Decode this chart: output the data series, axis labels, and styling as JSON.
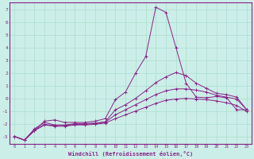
{
  "background_color": "#cceee8",
  "grid_color": "#aaddcc",
  "line_color": "#882288",
  "xlabel": "Windchill (Refroidissement éolien,°C)",
  "yticks": [
    -3,
    -2,
    -1,
    0,
    1,
    2,
    3,
    4,
    5,
    6,
    7
  ],
  "ylabel_ticks": [
    "-3",
    "-2",
    "-1",
    "0",
    "1",
    "2",
    "3",
    "4",
    "5",
    "6",
    "7"
  ],
  "ylim": [
    -3.6,
    7.6
  ],
  "xlim": [
    -0.5,
    23.5
  ],
  "xticks": [
    0,
    1,
    2,
    3,
    4,
    5,
    6,
    7,
    8,
    9,
    10,
    11,
    12,
    13,
    14,
    15,
    16,
    17,
    18,
    19,
    20,
    21,
    22,
    23
  ],
  "series": [
    {
      "x": [
        0,
        1,
        2,
        3,
        4,
        5,
        6,
        7,
        8,
        9,
        10,
        11,
        12,
        13,
        14,
        15,
        16,
        17,
        18,
        19,
        20,
        21,
        22,
        23
      ],
      "y": [
        -3.0,
        -3.3,
        -2.5,
        -1.8,
        -1.7,
        -1.9,
        -1.9,
        -1.9,
        -1.8,
        -1.6,
        -0.1,
        0.5,
        2.0,
        3.3,
        7.2,
        6.8,
        4.0,
        1.2,
        0.1,
        0.05,
        0.15,
        0.05,
        -0.9,
        -0.9
      ]
    },
    {
      "x": [
        0,
        1,
        2,
        3,
        4,
        5,
        6,
        7,
        8,
        9,
        10,
        11,
        12,
        13,
        14,
        15,
        16,
        17,
        18,
        19,
        20,
        21,
        22,
        23
      ],
      "y": [
        -3.0,
        -3.3,
        -2.4,
        -1.9,
        -2.1,
        -2.1,
        -2.0,
        -2.0,
        -1.95,
        -1.85,
        -0.9,
        -0.5,
        0.0,
        0.6,
        1.25,
        1.7,
        2.05,
        1.8,
        1.2,
        0.8,
        0.4,
        0.3,
        0.1,
        -0.9
      ]
    },
    {
      "x": [
        0,
        1,
        2,
        3,
        4,
        5,
        6,
        7,
        8,
        9,
        10,
        11,
        12,
        13,
        14,
        15,
        16,
        17,
        18,
        19,
        20,
        21,
        22,
        23
      ],
      "y": [
        -3.0,
        -3.3,
        -2.5,
        -2.05,
        -2.15,
        -2.15,
        -2.05,
        -2.05,
        -1.98,
        -1.88,
        -1.3,
        -0.9,
        -0.5,
        -0.1,
        0.3,
        0.6,
        0.75,
        0.75,
        0.65,
        0.5,
        0.25,
        0.1,
        -0.05,
        -0.9
      ]
    },
    {
      "x": [
        0,
        1,
        2,
        3,
        4,
        5,
        6,
        7,
        8,
        9,
        10,
        11,
        12,
        13,
        14,
        15,
        16,
        17,
        18,
        19,
        20,
        21,
        22,
        23
      ],
      "y": [
        -3.0,
        -3.3,
        -2.55,
        -2.1,
        -2.2,
        -2.2,
        -2.1,
        -2.1,
        -2.05,
        -1.95,
        -1.6,
        -1.3,
        -1.0,
        -0.7,
        -0.4,
        -0.15,
        -0.05,
        0.0,
        -0.05,
        -0.1,
        -0.2,
        -0.35,
        -0.55,
        -1.05
      ]
    }
  ]
}
